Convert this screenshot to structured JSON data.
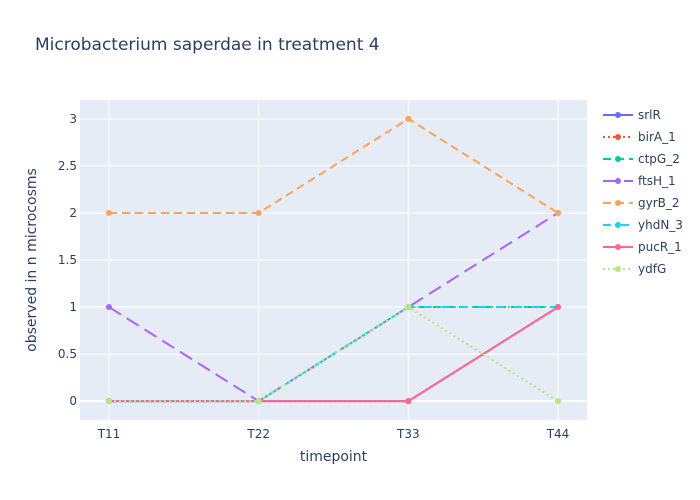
{
  "chart_data": {
    "type": "line",
    "title": "Microbacterium saperdae in treatment 4",
    "xlabel": "timepoint",
    "ylabel": "observed in n microcosms",
    "categories": [
      "T11",
      "T22",
      "T33",
      "T44"
    ],
    "ylim": [
      -0.2,
      3.2
    ],
    "yticks": [
      0,
      0.5,
      1,
      1.5,
      2,
      2.5,
      3
    ],
    "ytick_labels": [
      "0",
      "0.5",
      "1",
      "1.5",
      "2",
      "2.5",
      "3"
    ],
    "grid": true,
    "legend_position": "right",
    "plot_background": "#e5ecf6",
    "series": [
      {
        "name": "srlR",
        "color": "#636efa",
        "dash": "solid",
        "values": [
          0,
          0,
          0,
          1
        ]
      },
      {
        "name": "birA_1",
        "color": "#ef553b",
        "dash": "dot",
        "values": [
          0,
          0,
          0,
          1
        ]
      },
      {
        "name": "ctpG_2",
        "color": "#00cc96",
        "dash": "dash",
        "values": [
          0,
          0,
          1,
          1
        ]
      },
      {
        "name": "ftsH_1",
        "color": "#ab63fa",
        "dash": "longdash",
        "values": [
          1,
          0,
          1,
          2
        ]
      },
      {
        "name": "gyrB_2",
        "color": "#ffa15a",
        "dash": "dash",
        "values": [
          2,
          2,
          3,
          2
        ]
      },
      {
        "name": "yhdN_3",
        "color": "#19d3f3",
        "dash": "dashdot",
        "values": [
          0,
          0,
          1,
          1
        ]
      },
      {
        "name": "pucR_1",
        "color": "#ff6692",
        "dash": "solid",
        "values": [
          0,
          0,
          0,
          1
        ]
      },
      {
        "name": "ydfG",
        "color": "#b6e880",
        "dash": "dot",
        "values": [
          0,
          0,
          1,
          0
        ]
      }
    ]
  }
}
